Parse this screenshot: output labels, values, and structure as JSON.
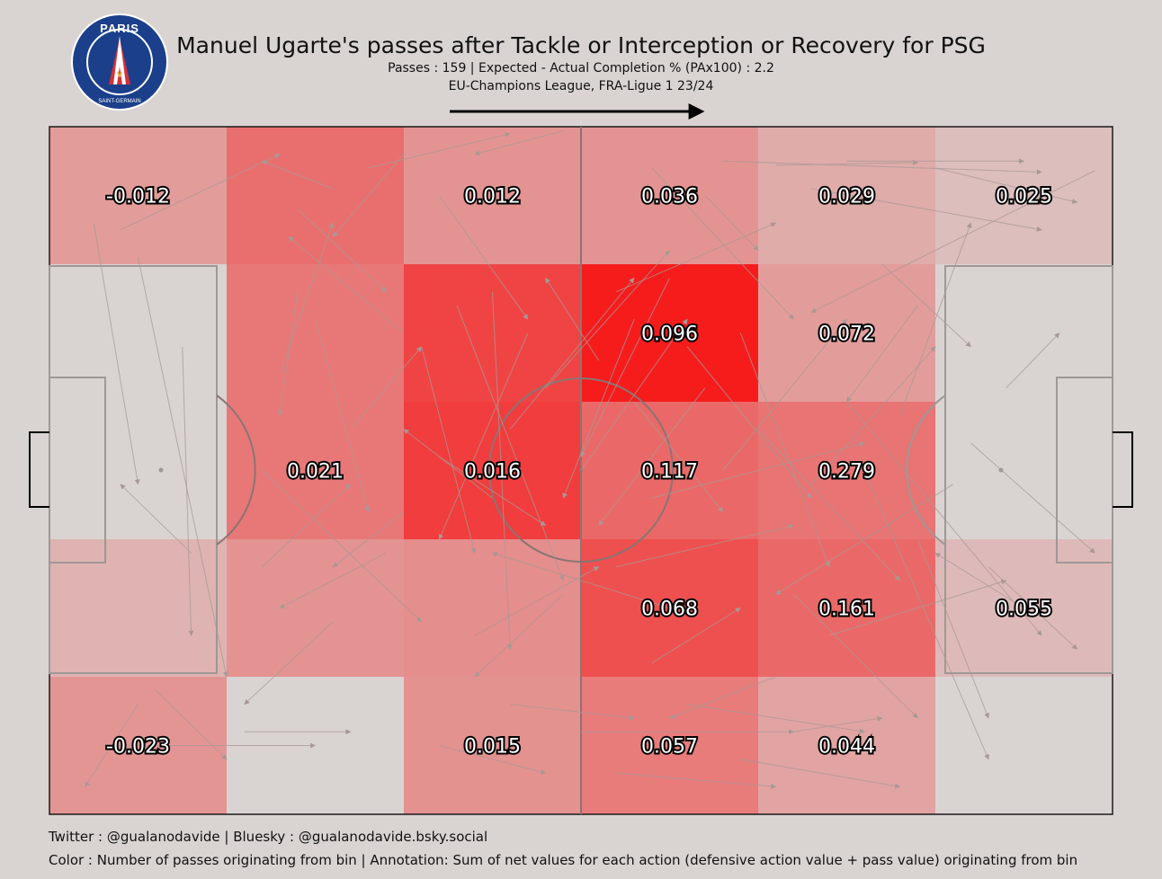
{
  "title": "Manuel Ugarte's passes after Tackle or Interception or Recovery for PSG",
  "subtitle1": "Passes : 159 | Expected - Actual Completion % (PAx100) : 2.2",
  "subtitle2": "EU-Champions League, FRA-Ligue 1 23/24",
  "logo": {
    "top_text": "PARIS",
    "bottom_text": "SAINT-GERMAIN",
    "ring_color": "#1b3f8a",
    "red": "#d8303a"
  },
  "footer": {
    "line1": "Twitter : @gualanodavide | Bluesky : @gualanodavide.bsky.social",
    "line2": "Color : Number of passes originating from bin | Annotation: Sum of net values for each action (defensive action value + pass value) originating from bin"
  },
  "chart_data": {
    "type": "heatmap",
    "direction": "left-to-right",
    "grid": {
      "columns": 6,
      "rows": 5
    },
    "color_legend": "Number of passes originating from bin",
    "annotation_legend": "Sum of net values for each action (defensive action value + pass value) originating from bin",
    "cells": [
      {
        "col": 0,
        "row": 0,
        "label": "-0.012",
        "intensity": 0.3
      },
      {
        "col": 1,
        "row": 0,
        "label": "",
        "intensity": 0.55
      },
      {
        "col": 2,
        "row": 0,
        "label": "0.012",
        "intensity": 0.35
      },
      {
        "col": 3,
        "row": 0,
        "label": "0.036",
        "intensity": 0.35
      },
      {
        "col": 4,
        "row": 0,
        "label": "0.029",
        "intensity": 0.22
      },
      {
        "col": 5,
        "row": 0,
        "label": "0.025",
        "intensity": 0.12
      },
      {
        "col": 0,
        "row": 1,
        "label": "",
        "intensity": 0.0
      },
      {
        "col": 1,
        "row": 1,
        "label": "",
        "intensity": 0.5
      },
      {
        "col": 2,
        "row": 1,
        "label": "",
        "intensity": 0.78
      },
      {
        "col": 3,
        "row": 1,
        "label": "0.096",
        "intensity": 1.0
      },
      {
        "col": 4,
        "row": 1,
        "label": "0.072",
        "intensity": 0.3
      },
      {
        "col": 5,
        "row": 1,
        "label": "",
        "intensity": 0.0
      },
      {
        "col": 0,
        "row": 2,
        "label": "",
        "intensity": 0.0
      },
      {
        "col": 1,
        "row": 2,
        "label": "0.021",
        "intensity": 0.5
      },
      {
        "col": 2,
        "row": 2,
        "label": "0.016",
        "intensity": 0.82
      },
      {
        "col": 3,
        "row": 2,
        "label": "0.117",
        "intensity": 0.58
      },
      {
        "col": 4,
        "row": 2,
        "label": "0.279",
        "intensity": 0.52
      },
      {
        "col": 5,
        "row": 2,
        "label": "",
        "intensity": 0.0
      },
      {
        "col": 0,
        "row": 3,
        "label": "",
        "intensity": 0.18
      },
      {
        "col": 1,
        "row": 3,
        "label": "",
        "intensity": 0.35
      },
      {
        "col": 2,
        "row": 3,
        "label": "",
        "intensity": 0.38
      },
      {
        "col": 3,
        "row": 3,
        "label": "0.068",
        "intensity": 0.72
      },
      {
        "col": 4,
        "row": 3,
        "label": "0.161",
        "intensity": 0.58
      },
      {
        "col": 5,
        "row": 3,
        "label": "0.055",
        "intensity": 0.14
      },
      {
        "col": 0,
        "row": 4,
        "label": "-0.023",
        "intensity": 0.34
      },
      {
        "col": 1,
        "row": 4,
        "label": "",
        "intensity": 0.0
      },
      {
        "col": 2,
        "row": 4,
        "label": "0.015",
        "intensity": 0.36
      },
      {
        "col": 3,
        "row": 4,
        "label": "0.057",
        "intensity": 0.48
      },
      {
        "col": 4,
        "row": 4,
        "label": "0.044",
        "intensity": 0.26
      },
      {
        "col": 5,
        "row": 4,
        "label": "",
        "intensity": 0.0
      }
    ],
    "passes": [
      [
        3.4,
        0.3,
        4.2,
        1.4
      ],
      [
        3.8,
        0.25,
        5.6,
        0.33
      ],
      [
        4.5,
        0.25,
        5.5,
        0.25
      ],
      [
        4.1,
        0.28,
        4.9,
        0.26
      ],
      [
        4.3,
        0.45,
        5.6,
        0.75
      ],
      [
        5.9,
        0.32,
        4.3,
        1.35
      ],
      [
        2.9,
        0.03,
        2.4,
        0.2
      ],
      [
        1.6,
        0.45,
        1.2,
        0.25
      ],
      [
        1.8,
        0.3,
        2.6,
        0.05
      ],
      [
        0.25,
        0.7,
        0.5,
        2.6
      ],
      [
        0.4,
        0.75,
        1.3,
        0.2
      ],
      [
        0.5,
        0.95,
        1.0,
        4.0
      ],
      [
        0.75,
        1.6,
        0.8,
        3.7
      ],
      [
        1.4,
        1.2,
        1.3,
        2.1
      ],
      [
        1.5,
        1.4,
        1.8,
        2.8
      ],
      [
        1.2,
        2.5,
        2.1,
        3.6
      ],
      [
        1.3,
        1.8,
        1.6,
        0.7
      ],
      [
        2.0,
        1.5,
        1.35,
        0.8
      ],
      [
        2.1,
        1.6,
        2.4,
        3.1
      ],
      [
        2.3,
        1.3,
        2.9,
        3.3
      ],
      [
        2.5,
        1.2,
        2.6,
        3.8
      ],
      [
        2.7,
        1.5,
        2.2,
        3.0
      ],
      [
        2.6,
        2.2,
        3.3,
        1.1
      ],
      [
        2.8,
        1.9,
        3.5,
        0.9
      ],
      [
        3.0,
        2.5,
        3.6,
        1.4
      ],
      [
        3.3,
        1.4,
        2.9,
        2.7
      ],
      [
        3.2,
        1.2,
        4.1,
        0.7
      ],
      [
        3.5,
        1.1,
        3.0,
        2.4
      ],
      [
        3.6,
        1.6,
        4.3,
        2.7
      ],
      [
        3.7,
        1.9,
        3.1,
        2.9
      ],
      [
        3.9,
        1.5,
        4.4,
        3.2
      ],
      [
        4.0,
        2.2,
        4.8,
        3.3
      ],
      [
        3.8,
        2.5,
        4.5,
        1.4
      ],
      [
        3.4,
        2.7,
        4.6,
        2.3
      ],
      [
        3.2,
        3.2,
        4.2,
        2.9
      ],
      [
        3.5,
        3.5,
        2.5,
        3.1
      ],
      [
        4.2,
        3.4,
        4.9,
        4.3
      ],
      [
        4.4,
        3.7,
        5.4,
        3.3
      ],
      [
        4.6,
        2.5,
        5.3,
        4.6
      ],
      [
        4.8,
        2.1,
        5.2,
        0.7
      ],
      [
        4.3,
        2.6,
        5.0,
        1.6
      ],
      [
        4.5,
        2.0,
        5.6,
        3.7
      ],
      [
        4.9,
        3.0,
        5.3,
        4.3
      ],
      [
        5.1,
        2.6,
        4.1,
        3.4
      ],
      [
        5.3,
        3.2,
        5.8,
        3.8
      ],
      [
        5.5,
        3.5,
        5.0,
        3.1
      ],
      [
        1.6,
        3.6,
        1.1,
        4.2
      ],
      [
        1.9,
        3.1,
        1.3,
        3.5
      ],
      [
        1.2,
        3.2,
        1.7,
        2.6
      ],
      [
        0.5,
        4.2,
        0.2,
        4.8
      ],
      [
        0.6,
        4.1,
        1.0,
        4.6
      ],
      [
        1.1,
        4.4,
        1.7,
        4.4
      ],
      [
        0.3,
        4.5,
        1.5,
        4.5
      ],
      [
        2.2,
        4.5,
        2.8,
        4.7
      ],
      [
        2.6,
        4.2,
        3.3,
        4.3
      ],
      [
        3.0,
        4.4,
        4.2,
        4.4
      ],
      [
        3.2,
        4.7,
        4.1,
        4.8
      ],
      [
        3.6,
        4.2,
        4.6,
        4.4
      ],
      [
        3.9,
        4.6,
        4.8,
        4.8
      ],
      [
        4.2,
        4.4,
        4.7,
        4.3
      ],
      [
        2.9,
        3.4,
        2.4,
        4.0
      ],
      [
        2.4,
        3.7,
        3.1,
        3.2
      ],
      [
        2.0,
        2.8,
        1.6,
        3.2
      ],
      [
        2.2,
        2.4,
        2.8,
        2.9
      ],
      [
        1.7,
        2.2,
        2.1,
        1.6
      ],
      [
        2.5,
        2.7,
        2.0,
        2.2
      ],
      [
        3.1,
        1.7,
        2.8,
        1.1
      ],
      [
        3.3,
        2.0,
        3.8,
        2.8
      ],
      [
        0.8,
        3.1,
        0.4,
        2.6
      ],
      [
        1.4,
        0.6,
        1.9,
        1.2
      ],
      [
        2.2,
        0.5,
        2.7,
        1.4
      ],
      [
        2.0,
        0.2,
        1.6,
        0.8
      ],
      [
        5.0,
        0.3,
        5.8,
        0.55
      ],
      [
        4.7,
        1.0,
        5.2,
        1.6
      ],
      [
        4.9,
        1.3,
        4.5,
        2.0
      ],
      [
        3.7,
        0.5,
        4.0,
        0.9
      ],
      [
        5.2,
        2.3,
        5.9,
        3.1
      ],
      [
        5.4,
        1.9,
        5.7,
        1.5
      ],
      [
        4.1,
        4.0,
        3.5,
        4.3
      ],
      [
        3.4,
        3.9,
        3.9,
        3.5
      ]
    ]
  }
}
